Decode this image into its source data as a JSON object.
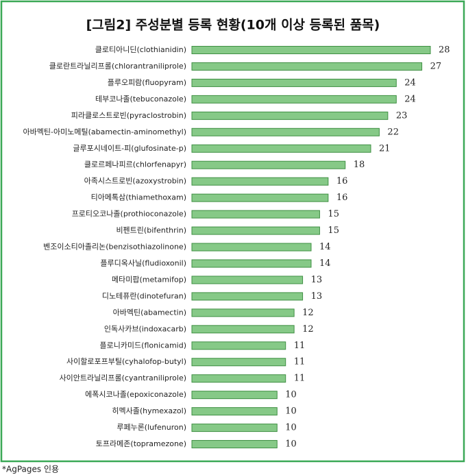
{
  "chart_data": {
    "type": "bar",
    "orientation": "horizontal",
    "title": "[그림2] 주성분별 등록 현황(10개 이상 등록된 품목)",
    "categories": [
      "클로티아니딘(clothianidin)",
      "클로란트라닐리프롤(chlorantraniliprole)",
      "플루오피람(fluopyram)",
      "테부코나졸(tebuconazole)",
      "피라클로스트로빈(pyraclostrobin)",
      "아바멕틴-아미노메틸(abamectin-aminomethyl)",
      "글루포시네이트-피(glufosinate-p)",
      "클로르페나피르(chlorfenapyr)",
      "아족시스트로빈(azoxystrobin)",
      "티아메톡삼(thiamethoxam)",
      "프로티오코나졸(prothioconazole)",
      "비펜트린(bifenthrin)",
      "벤조이소티아졸리논(benzisothiazolinone)",
      "플루디옥사닐(fludioxonil)",
      "메타미팝(metamifop)",
      "디노테퓨란(dinotefuran)",
      "아바멕틴(abamectin)",
      "인독사카브(indoxacarb)",
      "플로니카미드(flonicamid)",
      "사이할로포프부틸(cyhalofop-butyl)",
      "사이안트라닐리프롤(cyantraniliprole)",
      "에폭시코나졸(epoxiconazole)",
      "히멕사졸(hymexazol)",
      "루페누론(lufenuron)",
      "토프라메존(topramezone)"
    ],
    "values": [
      28,
      27,
      24,
      24,
      23,
      22,
      21,
      18,
      16,
      16,
      15,
      15,
      14,
      14,
      13,
      13,
      12,
      12,
      11,
      11,
      11,
      10,
      10,
      10,
      10
    ],
    "color": "#86c987",
    "edge_color": "#3f8f43",
    "border_color": "#3aa856"
  },
  "footnote": "*AgPages 인용"
}
